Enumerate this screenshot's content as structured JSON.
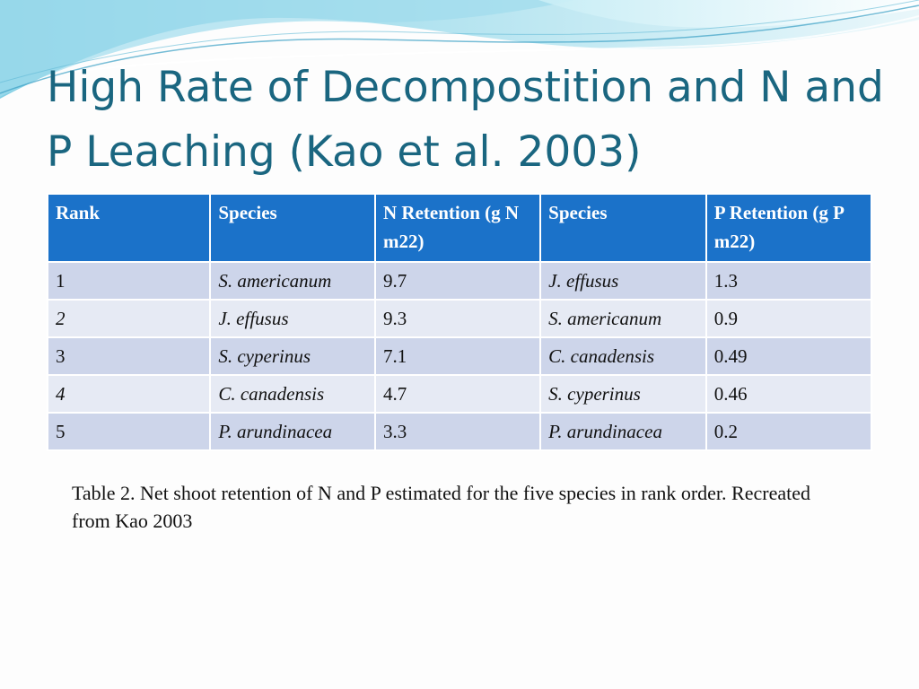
{
  "slide": {
    "title": "High Rate of Decompostition and N and P Leaching (Kao et al. 2003)",
    "caption": "Table 2. Net shoot retention of N and P estimated for the five species in rank order. Recreated from Kao 2003"
  },
  "table": {
    "headers": {
      "rank": "Rank",
      "species_n": "Species",
      "n_retention": "N Retention (g N m22)",
      "species_p": "Species",
      "p_retention": "P Retention (g P m22)"
    },
    "rows": [
      {
        "rank": "1",
        "species_n": "S. americanum",
        "n_retention": "9.7",
        "species_p": "J. effusus",
        "p_retention": "1.3"
      },
      {
        "rank": "2",
        "species_n": "J. effusus",
        "n_retention": "9.3",
        "species_p": "S. americanum",
        "p_retention": "0.9"
      },
      {
        "rank": "3",
        "species_n": "S. cyperinus",
        "n_retention": "7.1",
        "species_p": "C. canadensis",
        "p_retention": "0.49"
      },
      {
        "rank": "4",
        "species_n": "C. canadensis",
        "n_retention": "4.7",
        "species_p": "S. cyperinus",
        "p_retention": "0.46"
      },
      {
        "rank": "5",
        "species_n": "P. arundinacea",
        "n_retention": "3.3",
        "species_p": "P. arundinacea",
        "p_retention": "0.2"
      }
    ]
  },
  "theme": {
    "title_color": "#1a6680",
    "header_fill": "#1b72c9",
    "row_fill_odd": "#cdd5ea",
    "row_fill_even": "#e6eaf4",
    "wave_colors": [
      "#7fd3e6",
      "#b9e6f1",
      "#3a9fc4"
    ]
  }
}
